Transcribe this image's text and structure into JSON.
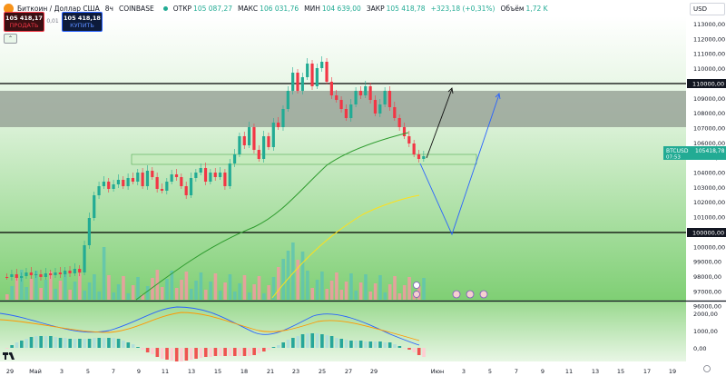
{
  "legend": {
    "symbol": "Биткоин / Доллар США",
    "interval": "8ч",
    "exchange": "COINBASE",
    "open_label": "ОТКР",
    "open": "105 087,27",
    "high_label": "МАКС",
    "high": "106 031,76",
    "low_label": "МИН",
    "low": "104 639,00",
    "close_label": "ЗАКР",
    "close": "105 418,78",
    "change": "+323,18 (+0,31%)",
    "volume_label": "Объём",
    "volume": "1,72 K"
  },
  "trade": {
    "sell_price": "105 418,17",
    "sell_label": "ПРОДАТЬ",
    "buy_price": "105 418,18",
    "buy_label": "КУПИТЬ",
    "spread": "0,01"
  },
  "currency": "USD",
  "price_scale": {
    "ticks": [
      "113000,00",
      "112000,00",
      "111000,00",
      "110000,00",
      "109000,00",
      "108000,00",
      "107000,00",
      "106000,00",
      "105000,00",
      "104000,00",
      "103000,00",
      "102000,00",
      "101000,00",
      "100000,00",
      "99000,00",
      "98000,00",
      "97000,00",
      "96000,00"
    ],
    "badge_110": "110000,00",
    "badge_100": "100000,00",
    "symbol_badge": "BTCUSD",
    "last_price": "105418,78",
    "countdown": "07:53"
  },
  "time_axis": [
    "29",
    "Май",
    "3",
    "5",
    "7",
    "9",
    "11",
    "13",
    "15",
    "18",
    "21",
    "23",
    "25",
    "27",
    "29",
    "Июн",
    "3",
    "5",
    "7",
    "9",
    "11",
    "13",
    "15",
    "17",
    "19"
  ],
  "oscillator_scale": [
    "2000,00",
    "1000,00",
    "0,00"
  ],
  "colors": {
    "bull": "#22ab94",
    "bear": "#f23645",
    "accent": "#2962ff",
    "ma_slow": "#2e9c2e",
    "ma_fast": "#ffe01a",
    "zone": "#8f9a8f"
  },
  "icons": [
    "bitcoin-logo-icon",
    "tradingview-logo-icon",
    "event-icon",
    "us-flag-icon",
    "reset-chart-icon"
  ]
}
